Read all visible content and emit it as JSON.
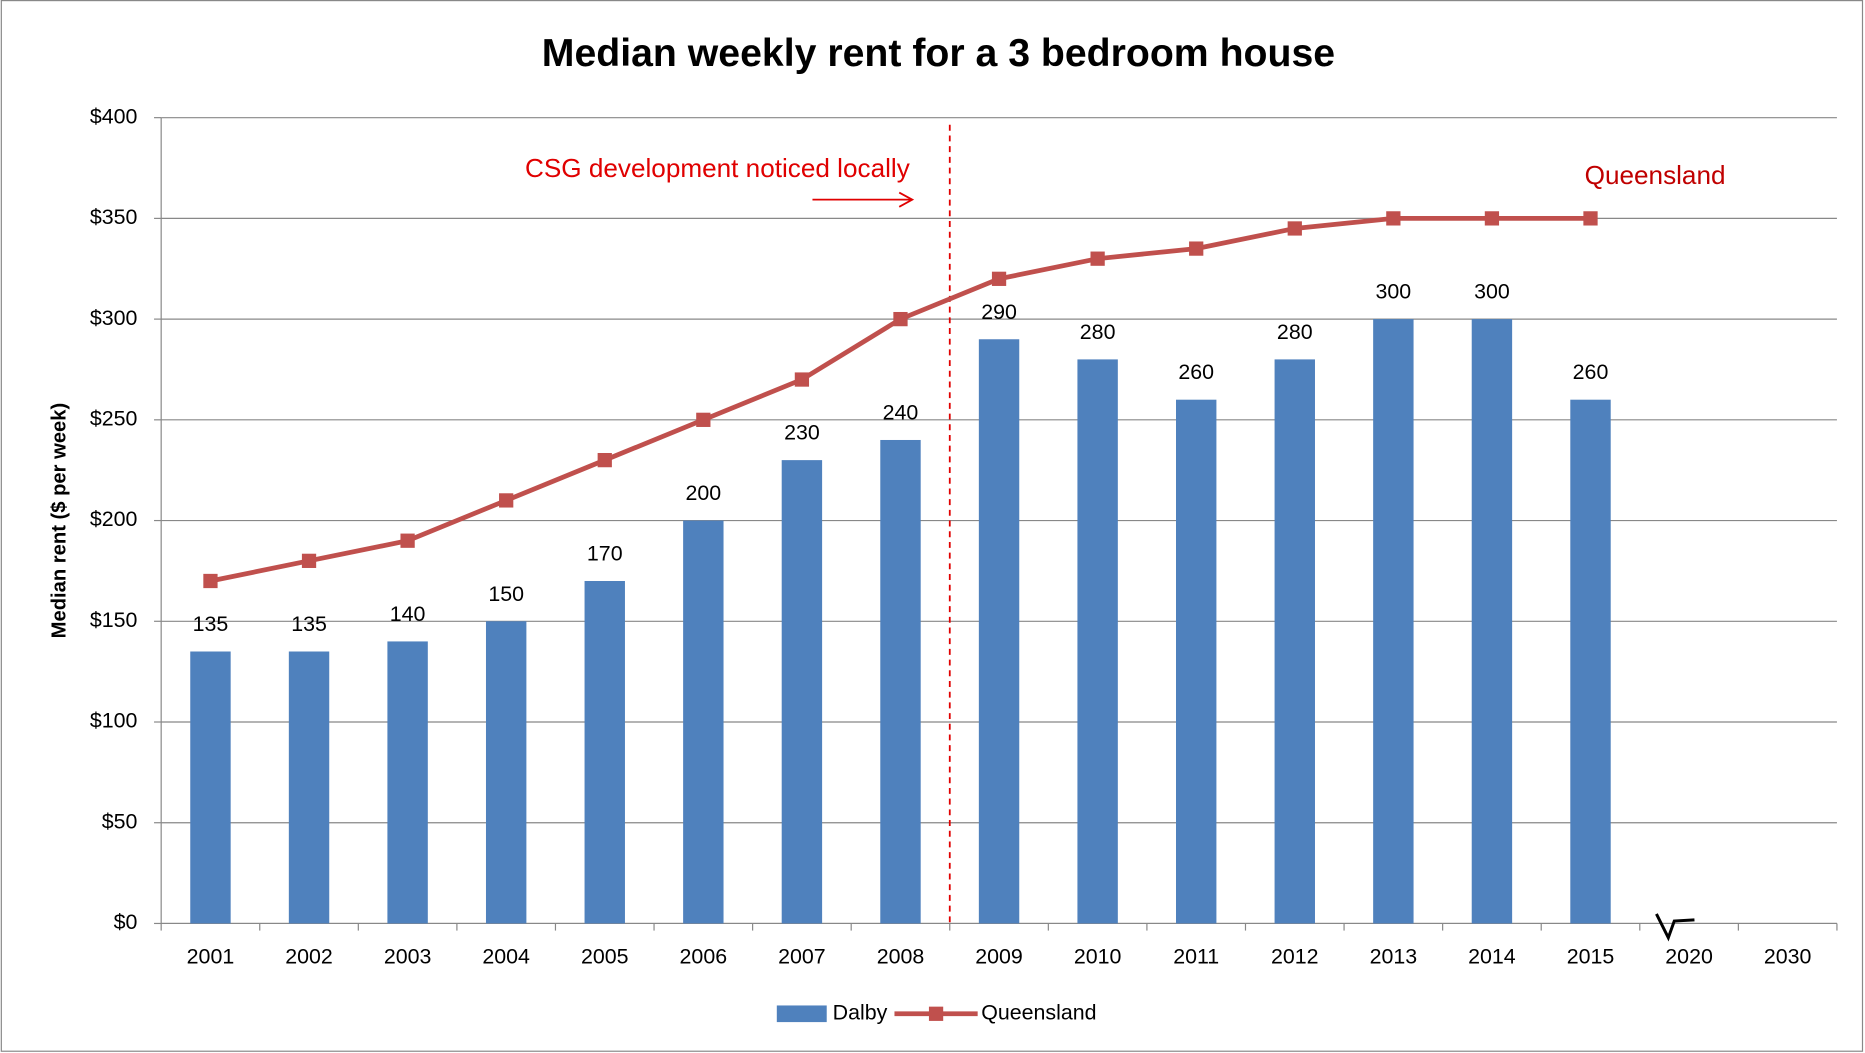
{
  "chart_data": {
    "type": "bar_line",
    "title": "Median weekly rent for a 3 bedroom house",
    "y_label": "Median rent ($ per week)",
    "annotations": [
      "CSG development noticed locally",
      "Queensland"
    ],
    "categories": [
      "2001",
      "2002",
      "2003",
      "2004",
      "2005",
      "2006",
      "2007",
      "2008",
      "2009",
      "2010",
      "2011",
      "2012",
      "2013",
      "2014",
      "2015",
      "2020",
      "2030"
    ],
    "series": [
      {
        "name": "Dalby",
        "type": "bar",
        "color": "#4f81bd",
        "values": [
          135,
          135,
          140,
          150,
          170,
          200,
          230,
          240,
          290,
          280,
          260,
          280,
          300,
          300,
          260,
          null,
          null
        ]
      },
      {
        "name": "Queensland",
        "type": "line",
        "color": "#c0504d",
        "values": [
          170,
          180,
          190,
          210,
          230,
          250,
          270,
          300,
          320,
          330,
          335,
          345,
          350,
          350,
          350,
          null,
          null
        ]
      }
    ],
    "ylim": [
      0,
      400
    ],
    "yticks": [
      {
        "value": 0,
        "label": "$0"
      },
      {
        "value": 50,
        "label": "$50"
      },
      {
        "value": 100,
        "label": "$100"
      },
      {
        "value": 150,
        "label": "$150"
      },
      {
        "value": 200,
        "label": "$200"
      },
      {
        "value": 250,
        "label": "$250"
      },
      {
        "value": 300,
        "label": "$300"
      },
      {
        "value": 350,
        "label": "$350"
      },
      {
        "value": 400,
        "label": "$400"
      }
    ],
    "grid": true,
    "legend": "bottom"
  }
}
